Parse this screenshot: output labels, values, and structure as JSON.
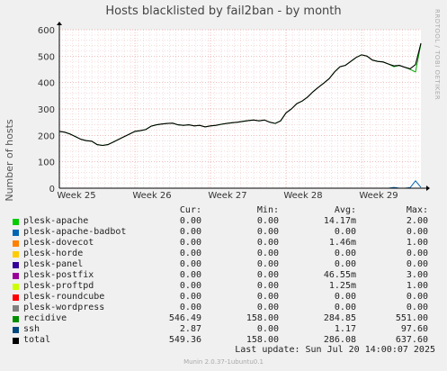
{
  "chart_data": {
    "type": "line",
    "title": "Hosts blacklisted by fail2ban - by month",
    "ylabel": "Number of hosts",
    "xlabel": "",
    "ylim": [
      0,
      600
    ],
    "y_ticks": [
      0,
      100,
      200,
      300,
      400,
      500,
      600
    ],
    "x_ticks": [
      "Week 25",
      "Week 26",
      "Week 27",
      "Week 28",
      "Week 29"
    ],
    "grid": true,
    "series": [
      {
        "name": "recidive",
        "color": "#00aa00",
        "points": [
          [
            0,
            215
          ],
          [
            1,
            212
          ],
          [
            2,
            205
          ],
          [
            3,
            195
          ],
          [
            4,
            185
          ],
          [
            5,
            180
          ],
          [
            6,
            178
          ],
          [
            7,
            165
          ],
          [
            8,
            162
          ],
          [
            9,
            165
          ],
          [
            10,
            175
          ],
          [
            11,
            185
          ],
          [
            12,
            195
          ],
          [
            13,
            205
          ],
          [
            14,
            215
          ],
          [
            15,
            218
          ],
          [
            16,
            222
          ],
          [
            17,
            235
          ],
          [
            18,
            240
          ],
          [
            19,
            243
          ],
          [
            20,
            245
          ],
          [
            21,
            246
          ],
          [
            22,
            240
          ],
          [
            23,
            238
          ],
          [
            24,
            240
          ],
          [
            25,
            236
          ],
          [
            26,
            238
          ],
          [
            27,
            232
          ],
          [
            28,
            236
          ],
          [
            29,
            238
          ],
          [
            30,
            242
          ],
          [
            31,
            245
          ],
          [
            32,
            248
          ],
          [
            33,
            250
          ],
          [
            34,
            253
          ],
          [
            35,
            256
          ],
          [
            36,
            258
          ],
          [
            37,
            255
          ],
          [
            38,
            258
          ],
          [
            39,
            250
          ],
          [
            40,
            245
          ],
          [
            41,
            255
          ],
          [
            42,
            285
          ],
          [
            43,
            300
          ],
          [
            44,
            320
          ],
          [
            45,
            330
          ],
          [
            46,
            345
          ],
          [
            47,
            365
          ],
          [
            48,
            382
          ],
          [
            49,
            398
          ],
          [
            50,
            415
          ],
          [
            51,
            440
          ],
          [
            52,
            460
          ],
          [
            53,
            465
          ],
          [
            54,
            480
          ],
          [
            55,
            495
          ],
          [
            56,
            505
          ],
          [
            57,
            500
          ],
          [
            58,
            485
          ],
          [
            59,
            480
          ],
          [
            60,
            478
          ],
          [
            61,
            470
          ],
          [
            62,
            460
          ],
          [
            63,
            465
          ],
          [
            64,
            458
          ],
          [
            65,
            450
          ],
          [
            66,
            440
          ],
          [
            67,
            546
          ]
        ]
      },
      {
        "name": "ssh",
        "color": "#0066b3",
        "points": [
          [
            0,
            0
          ],
          [
            30,
            0
          ],
          [
            61,
            0
          ],
          [
            62,
            3
          ],
          [
            63,
            0
          ],
          [
            64,
            0
          ],
          [
            65,
            2
          ],
          [
            66,
            28
          ],
          [
            67,
            3
          ]
        ]
      },
      {
        "name": "total",
        "color": "#000000",
        "points": [
          [
            0,
            215
          ],
          [
            1,
            212
          ],
          [
            2,
            205
          ],
          [
            3,
            195
          ],
          [
            4,
            185
          ],
          [
            5,
            180
          ],
          [
            6,
            178
          ],
          [
            7,
            165
          ],
          [
            8,
            162
          ],
          [
            9,
            165
          ],
          [
            10,
            175
          ],
          [
            11,
            185
          ],
          [
            12,
            195
          ],
          [
            13,
            205
          ],
          [
            14,
            215
          ],
          [
            15,
            218
          ],
          [
            16,
            222
          ],
          [
            17,
            235
          ],
          [
            18,
            240
          ],
          [
            19,
            243
          ],
          [
            20,
            245
          ],
          [
            21,
            246
          ],
          [
            22,
            240
          ],
          [
            23,
            238
          ],
          [
            24,
            240
          ],
          [
            25,
            236
          ],
          [
            26,
            238
          ],
          [
            27,
            232
          ],
          [
            28,
            236
          ],
          [
            29,
            238
          ],
          [
            30,
            242
          ],
          [
            31,
            245
          ],
          [
            32,
            248
          ],
          [
            33,
            250
          ],
          [
            34,
            253
          ],
          [
            35,
            256
          ],
          [
            36,
            258
          ],
          [
            37,
            255
          ],
          [
            38,
            258
          ],
          [
            39,
            250
          ],
          [
            40,
            245
          ],
          [
            41,
            255
          ],
          [
            42,
            285
          ],
          [
            43,
            300
          ],
          [
            44,
            320
          ],
          [
            45,
            330
          ],
          [
            46,
            345
          ],
          [
            47,
            365
          ],
          [
            48,
            382
          ],
          [
            49,
            398
          ],
          [
            50,
            415
          ],
          [
            51,
            440
          ],
          [
            52,
            460
          ],
          [
            53,
            465
          ],
          [
            54,
            480
          ],
          [
            55,
            495
          ],
          [
            56,
            505
          ],
          [
            57,
            500
          ],
          [
            58,
            485
          ],
          [
            59,
            480
          ],
          [
            60,
            478
          ],
          [
            61,
            470
          ],
          [
            62,
            463
          ],
          [
            63,
            465
          ],
          [
            64,
            458
          ],
          [
            65,
            452
          ],
          [
            66,
            468
          ],
          [
            67,
            549
          ]
        ]
      }
    ]
  },
  "legend": {
    "headers": {
      "cur": "Cur:",
      "min": "Min:",
      "avg": "Avg:",
      "max": "Max:"
    },
    "rows": [
      {
        "name": "plesk-apache",
        "color": "#00cc00",
        "cur": "0.00",
        "min": "0.00",
        "avg": "14.17m",
        "max": "2.00"
      },
      {
        "name": "plesk-apache-badbot",
        "color": "#0066b3",
        "cur": "0.00",
        "min": "0.00",
        "avg": "0.00",
        "max": "0.00"
      },
      {
        "name": "plesk-dovecot",
        "color": "#ff8000",
        "cur": "0.00",
        "min": "0.00",
        "avg": "1.46m",
        "max": "1.00"
      },
      {
        "name": "plesk-horde",
        "color": "#ffcc00",
        "cur": "0.00",
        "min": "0.00",
        "avg": "0.00",
        "max": "0.00"
      },
      {
        "name": "plesk-panel",
        "color": "#330099",
        "cur": "0.00",
        "min": "0.00",
        "avg": "0.00",
        "max": "0.00"
      },
      {
        "name": "plesk-postfix",
        "color": "#990099",
        "cur": "0.00",
        "min": "0.00",
        "avg": "46.55m",
        "max": "3.00"
      },
      {
        "name": "plesk-proftpd",
        "color": "#ccff00",
        "cur": "0.00",
        "min": "0.00",
        "avg": "1.25m",
        "max": "1.00"
      },
      {
        "name": "plesk-roundcube",
        "color": "#ff0000",
        "cur": "0.00",
        "min": "0.00",
        "avg": "0.00",
        "max": "0.00"
      },
      {
        "name": "plesk-wordpress",
        "color": "#808080",
        "cur": "0.00",
        "min": "0.00",
        "avg": "0.00",
        "max": "0.00"
      },
      {
        "name": "recidive",
        "color": "#008f00",
        "cur": "546.49",
        "min": "158.00",
        "avg": "284.85",
        "max": "551.00"
      },
      {
        "name": "ssh",
        "color": "#00487d",
        "cur": "2.87",
        "min": "0.00",
        "avg": "1.17",
        "max": "97.60"
      },
      {
        "name": "total",
        "color": "#000000",
        "cur": "549.36",
        "min": "158.00",
        "avg": "286.08",
        "max": "637.60"
      }
    ]
  },
  "last_update": "Last update: Sun Jul 20 14:00:07 2025",
  "side_text": "RRDTOOL / TOBI OETIKER",
  "footer": "Munin 2.0.37-1ubuntu0.1"
}
